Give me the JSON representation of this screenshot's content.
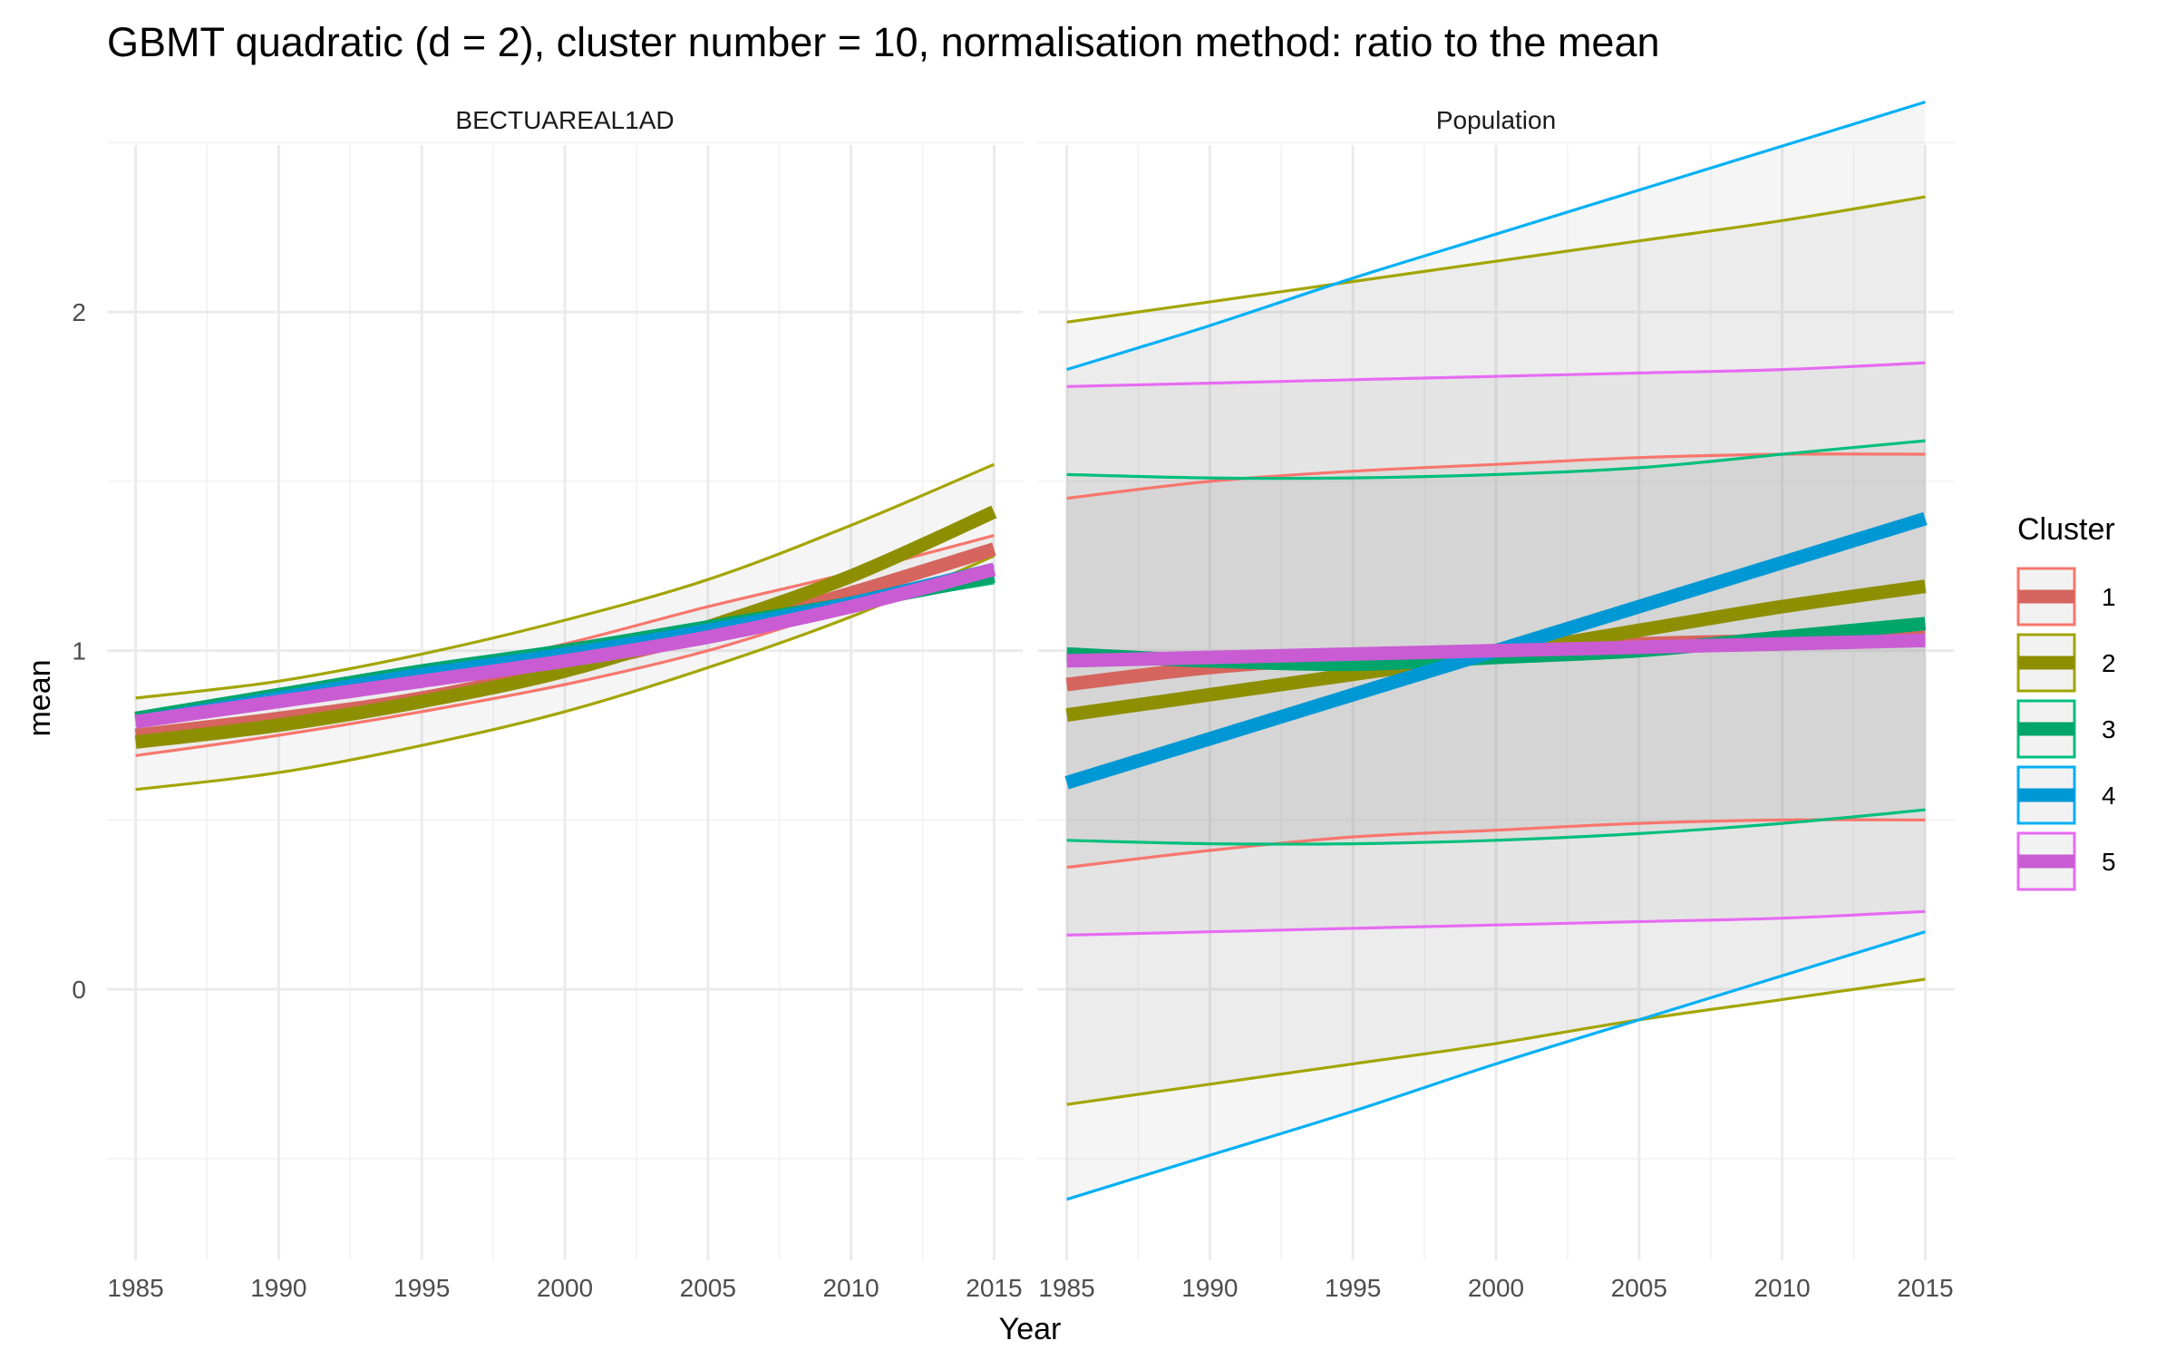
{
  "chart_data": {
    "type": "line",
    "title": "GBMT quadratic (d = 2), cluster number = 10, normalisation method: ratio to the mean",
    "xlabel": "Year",
    "ylabel": "mean",
    "xlim": [
      1984,
      2016
    ],
    "ylim": [
      -0.8,
      2.6
    ],
    "x_ticks": [
      1985,
      1990,
      1995,
      2000,
      2005,
      2010,
      2015
    ],
    "y_ticks": [
      0,
      1,
      2
    ],
    "grid": true,
    "legend": {
      "title": "Cluster",
      "position": "right",
      "entries": [
        {
          "label": "1",
          "color": "#F8766D"
        },
        {
          "label": "2",
          "color": "#A3A500"
        },
        {
          "label": "3",
          "color": "#00BF7D"
        },
        {
          "label": "4",
          "color": "#00B0F6"
        },
        {
          "label": "5",
          "color": "#E76BF3"
        }
      ]
    },
    "panels": [
      {
        "strip": "BECTUAREAL1AD",
        "series": [
          {
            "cluster": "1",
            "mean": [
              [
                1985,
                0.75
              ],
              [
                1990,
                0.8
              ],
              [
                1995,
                0.86
              ],
              [
                2000,
                0.95
              ],
              [
                2005,
                1.05
              ],
              [
                2010,
                1.17
              ],
              [
                2015,
                1.3
              ]
            ],
            "lower": [
              [
                1985,
                0.69
              ],
              [
                1990,
                0.75
              ],
              [
                1995,
                0.82
              ],
              [
                2000,
                0.9
              ],
              [
                2005,
                1.0
              ],
              [
                2010,
                1.13
              ],
              [
                2015,
                1.25
              ]
            ],
            "upper": [
              [
                1985,
                0.79
              ],
              [
                1990,
                0.85
              ],
              [
                1995,
                0.93
              ],
              [
                2000,
                1.02
              ],
              [
                2005,
                1.13
              ],
              [
                2010,
                1.23
              ],
              [
                2015,
                1.34
              ]
            ]
          },
          {
            "cluster": "2",
            "mean": [
              [
                1985,
                0.73
              ],
              [
                1990,
                0.78
              ],
              [
                1995,
                0.85
              ],
              [
                2000,
                0.94
              ],
              [
                2005,
                1.07
              ],
              [
                2010,
                1.22
              ],
              [
                2015,
                1.41
              ]
            ],
            "lower": [
              [
                1985,
                0.59
              ],
              [
                1990,
                0.64
              ],
              [
                1995,
                0.72
              ],
              [
                2000,
                0.82
              ],
              [
                2005,
                0.95
              ],
              [
                2010,
                1.1
              ],
              [
                2015,
                1.28
              ]
            ],
            "upper": [
              [
                1985,
                0.86
              ],
              [
                1990,
                0.91
              ],
              [
                1995,
                0.99
              ],
              [
                2000,
                1.09
              ],
              [
                2005,
                1.21
              ],
              [
                2010,
                1.37
              ],
              [
                2015,
                1.55
              ]
            ]
          },
          {
            "cluster": "3",
            "mean": [
              [
                1985,
                0.8
              ],
              [
                1990,
                0.87
              ],
              [
                1995,
                0.94
              ],
              [
                2000,
                1.0
              ],
              [
                2005,
                1.07
              ],
              [
                2010,
                1.14
              ],
              [
                2015,
                1.22
              ]
            ],
            "lower": [
              [
                1985,
                0.8
              ],
              [
                1990,
                0.87
              ],
              [
                1995,
                0.93
              ],
              [
                2000,
                1.0
              ],
              [
                2005,
                1.06
              ],
              [
                2010,
                1.13
              ],
              [
                2015,
                1.2
              ]
            ],
            "upper": [
              [
                1985,
                0.81
              ],
              [
                1990,
                0.88
              ],
              [
                1995,
                0.95
              ],
              [
                2000,
                1.01
              ],
              [
                2005,
                1.08
              ],
              [
                2010,
                1.15
              ],
              [
                2015,
                1.24
              ]
            ]
          },
          {
            "cluster": "4",
            "mean": [
              [
                1985,
                0.79
              ],
              [
                1990,
                0.86
              ],
              [
                1995,
                0.93
              ],
              [
                2000,
                0.99
              ],
              [
                2005,
                1.06
              ],
              [
                2010,
                1.14
              ],
              [
                2015,
                1.24
              ]
            ],
            "lower": [
              [
                1985,
                0.78
              ],
              [
                1990,
                0.85
              ],
              [
                1995,
                0.92
              ],
              [
                2000,
                0.98
              ],
              [
                2005,
                1.05
              ],
              [
                2010,
                1.13
              ],
              [
                2015,
                1.23
              ]
            ],
            "upper": [
              [
                1985,
                0.8
              ],
              [
                1990,
                0.87
              ],
              [
                1995,
                0.94
              ],
              [
                2000,
                1.0
              ],
              [
                2005,
                1.07
              ],
              [
                2010,
                1.15
              ],
              [
                2015,
                1.25
              ]
            ]
          },
          {
            "cluster": "5",
            "mean": [
              [
                1985,
                0.79
              ],
              [
                1990,
                0.85
              ],
              [
                1995,
                0.91
              ],
              [
                2000,
                0.97
              ],
              [
                2005,
                1.04
              ],
              [
                2010,
                1.13
              ],
              [
                2015,
                1.24
              ]
            ],
            "lower": [
              [
                1985,
                0.78
              ],
              [
                1990,
                0.84
              ],
              [
                1995,
                0.9
              ],
              [
                2000,
                0.96
              ],
              [
                2005,
                1.03
              ],
              [
                2010,
                1.12
              ],
              [
                2015,
                1.23
              ]
            ],
            "upper": [
              [
                1985,
                0.8
              ],
              [
                1990,
                0.86
              ],
              [
                1995,
                0.92
              ],
              [
                2000,
                0.98
              ],
              [
                2005,
                1.05
              ],
              [
                2010,
                1.14
              ],
              [
                2015,
                1.25
              ]
            ]
          }
        ]
      },
      {
        "strip": "Population",
        "series": [
          {
            "cluster": "1",
            "mean": [
              [
                1985,
                0.9
              ],
              [
                1990,
                0.95
              ],
              [
                1995,
                0.98
              ],
              [
                2000,
                1.0
              ],
              [
                2005,
                1.02
              ],
              [
                2010,
                1.03
              ],
              [
                2015,
                1.04
              ]
            ],
            "lower": [
              [
                1985,
                0.36
              ],
              [
                1990,
                0.41
              ],
              [
                1995,
                0.45
              ],
              [
                2000,
                0.47
              ],
              [
                2005,
                0.49
              ],
              [
                2010,
                0.5
              ],
              [
                2015,
                0.5
              ]
            ],
            "upper": [
              [
                1985,
                1.45
              ],
              [
                1990,
                1.5
              ],
              [
                1995,
                1.53
              ],
              [
                2000,
                1.55
              ],
              [
                2005,
                1.57
              ],
              [
                2010,
                1.58
              ],
              [
                2015,
                1.58
              ]
            ]
          },
          {
            "cluster": "2",
            "mean": [
              [
                1985,
                0.81
              ],
              [
                1990,
                0.87
              ],
              [
                1995,
                0.93
              ],
              [
                2000,
                0.99
              ],
              [
                2005,
                1.06
              ],
              [
                2010,
                1.13
              ],
              [
                2015,
                1.19
              ]
            ],
            "lower": [
              [
                1985,
                -0.34
              ],
              [
                1990,
                -0.28
              ],
              [
                1995,
                -0.22
              ],
              [
                2000,
                -0.16
              ],
              [
                2005,
                -0.09
              ],
              [
                2010,
                -0.03
              ],
              [
                2015,
                0.03
              ]
            ],
            "upper": [
              [
                1985,
                1.97
              ],
              [
                1990,
                2.03
              ],
              [
                1995,
                2.09
              ],
              [
                2000,
                2.15
              ],
              [
                2005,
                2.21
              ],
              [
                2010,
                2.27
              ],
              [
                2015,
                2.34
              ]
            ]
          },
          {
            "cluster": "3",
            "mean": [
              [
                1985,
                0.99
              ],
              [
                1990,
                0.97
              ],
              [
                1995,
                0.96
              ],
              [
                2000,
                0.98
              ],
              [
                2005,
                1.0
              ],
              [
                2010,
                1.04
              ],
              [
                2015,
                1.08
              ]
            ],
            "lower": [
              [
                1985,
                0.44
              ],
              [
                1990,
                0.43
              ],
              [
                1995,
                0.43
              ],
              [
                2000,
                0.44
              ],
              [
                2005,
                0.46
              ],
              [
                2010,
                0.49
              ],
              [
                2015,
                0.53
              ]
            ],
            "upper": [
              [
                1985,
                1.52
              ],
              [
                1990,
                1.51
              ],
              [
                1995,
                1.51
              ],
              [
                2000,
                1.52
              ],
              [
                2005,
                1.54
              ],
              [
                2010,
                1.58
              ],
              [
                2015,
                1.62
              ]
            ]
          },
          {
            "cluster": "4",
            "mean": [
              [
                1985,
                0.61
              ],
              [
                1990,
                0.74
              ],
              [
                1995,
                0.87
              ],
              [
                2000,
                1.0
              ],
              [
                2005,
                1.13
              ],
              [
                2010,
                1.26
              ],
              [
                2015,
                1.39
              ]
            ],
            "lower": [
              [
                1985,
                -0.62
              ],
              [
                1990,
                -0.49
              ],
              [
                1995,
                -0.36
              ],
              [
                2000,
                -0.22
              ],
              [
                2005,
                -0.09
              ],
              [
                2010,
                0.04
              ],
              [
                2015,
                0.17
              ]
            ],
            "upper": [
              [
                1985,
                1.83
              ],
              [
                1990,
                1.96
              ],
              [
                1995,
                2.1
              ],
              [
                2000,
                2.23
              ],
              [
                2005,
                2.36
              ],
              [
                2010,
                2.49
              ],
              [
                2015,
                2.62
              ]
            ]
          },
          {
            "cluster": "5",
            "mean": [
              [
                1985,
                0.97
              ],
              [
                1990,
                0.98
              ],
              [
                1995,
                0.99
              ],
              [
                2000,
                1.0
              ],
              [
                2005,
                1.01
              ],
              [
                2010,
                1.02
              ],
              [
                2015,
                1.03
              ]
            ],
            "lower": [
              [
                1985,
                0.16
              ],
              [
                1990,
                0.17
              ],
              [
                1995,
                0.18
              ],
              [
                2000,
                0.19
              ],
              [
                2005,
                0.2
              ],
              [
                2010,
                0.21
              ],
              [
                2015,
                0.23
              ]
            ],
            "upper": [
              [
                1985,
                1.78
              ],
              [
                1990,
                1.79
              ],
              [
                1995,
                1.8
              ],
              [
                2000,
                1.81
              ],
              [
                2005,
                1.82
              ],
              [
                2010,
                1.83
              ],
              [
                2015,
                1.85
              ]
            ]
          }
        ]
      }
    ]
  }
}
